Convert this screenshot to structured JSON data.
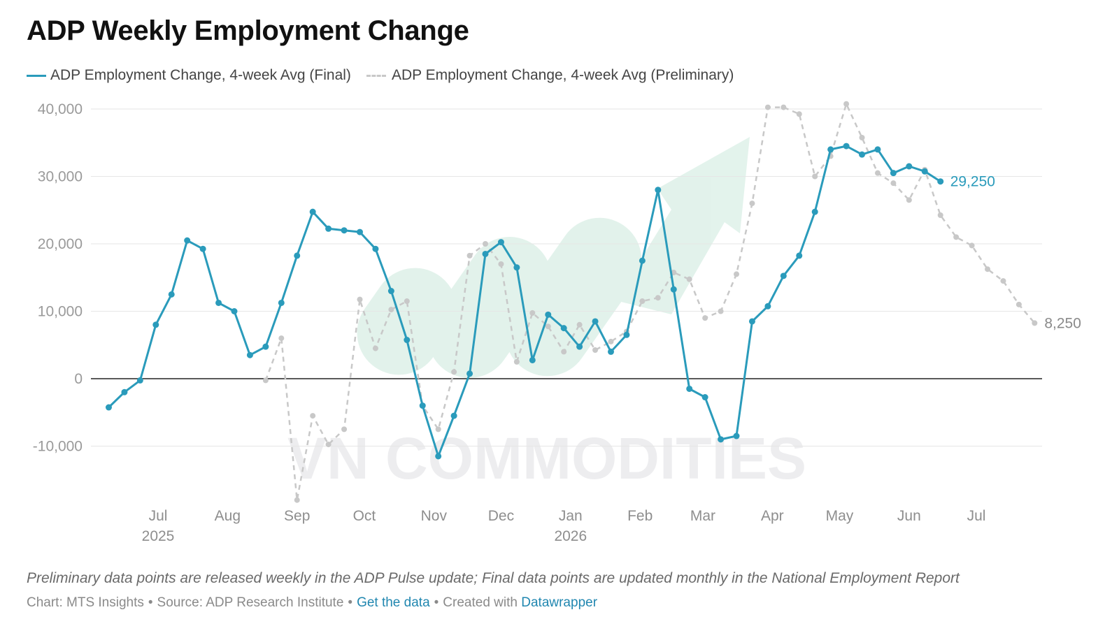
{
  "title": "ADP Weekly Employment Change",
  "legend": {
    "final_label": "ADP Employment Change, 4-week Avg (Final)",
    "preliminary_label": "ADP Employment Change, 4-week Avg (Preliminary)"
  },
  "footer": {
    "note": "Preliminary data points are released weekly in the ADP Pulse update; Final data points are updated monthly in the National Employment Report",
    "chart_by": "Chart: MTS Insights",
    "source": "Source: ADP Research Institute",
    "get_data": "Get the data",
    "created_with": "Created with",
    "datawrapper": "Datawrapper",
    "separator": "•"
  },
  "watermark": "VN COMMODITIES",
  "colors": {
    "final": "#2a9bbb",
    "preliminary": "#c8c8c8",
    "grid": "#e6e6e6",
    "zero_line": "#222222"
  },
  "chart_data": {
    "type": "line",
    "title": "ADP Weekly Employment Change",
    "ylim": [
      -20000,
      42000
    ],
    "y_ticks": [
      -10000,
      0,
      10000,
      20000,
      30000,
      40000
    ],
    "y_tick_labels": [
      "-10,000",
      "0",
      "10,000",
      "20,000",
      "30,000",
      "40,000"
    ],
    "x_ticks": [
      {
        "x": "2025-07-01",
        "label": "Jul",
        "sublabel": "2025"
      },
      {
        "x": "2025-08-01",
        "label": "Aug",
        "sublabel": ""
      },
      {
        "x": "2025-09-01",
        "label": "Sep",
        "sublabel": ""
      },
      {
        "x": "2025-10-01",
        "label": "Oct",
        "sublabel": ""
      },
      {
        "x": "2025-11-01",
        "label": "Nov",
        "sublabel": ""
      },
      {
        "x": "2025-12-01",
        "label": "Dec",
        "sublabel": ""
      },
      {
        "x": "2026-01-01",
        "label": "Jan",
        "sublabel": "2026"
      },
      {
        "x": "2026-02-01",
        "label": "Feb",
        "sublabel": ""
      },
      {
        "x": "2026-03-01",
        "label": "Mar",
        "sublabel": ""
      },
      {
        "x": "2026-04-01",
        "label": "Apr",
        "sublabel": ""
      },
      {
        "x": "2026-05-01",
        "label": "May",
        "sublabel": ""
      },
      {
        "x": "2026-06-01",
        "label": "Jun",
        "sublabel": ""
      },
      {
        "x": "2026-07-01",
        "label": "Jul",
        "sublabel": ""
      }
    ],
    "series": [
      {
        "name": "ADP Employment Change, 4-week Avg (Final)",
        "style": "solid",
        "end_label": "29,250",
        "points": [
          {
            "x": "2025-06-09",
            "y": -4250
          },
          {
            "x": "2025-06-16",
            "y": -2000
          },
          {
            "x": "2025-06-23",
            "y": -250
          },
          {
            "x": "2025-06-30",
            "y": 8000
          },
          {
            "x": "2025-07-07",
            "y": 12500
          },
          {
            "x": "2025-07-14",
            "y": 20500
          },
          {
            "x": "2025-07-21",
            "y": 19250
          },
          {
            "x": "2025-07-28",
            "y": 11250
          },
          {
            "x": "2025-08-04",
            "y": 10000
          },
          {
            "x": "2025-08-11",
            "y": 3500
          },
          {
            "x": "2025-08-18",
            "y": 4750
          },
          {
            "x": "2025-08-25",
            "y": 11250
          },
          {
            "x": "2025-09-01",
            "y": 18250
          },
          {
            "x": "2025-09-08",
            "y": 24750
          },
          {
            "x": "2025-09-15",
            "y": 22250
          },
          {
            "x": "2025-09-22",
            "y": 22000
          },
          {
            "x": "2025-09-29",
            "y": 21750
          },
          {
            "x": "2025-10-06",
            "y": 19250
          },
          {
            "x": "2025-10-13",
            "y": 13000
          },
          {
            "x": "2025-10-20",
            "y": 5750
          },
          {
            "x": "2025-10-27",
            "y": -4000
          },
          {
            "x": "2025-11-03",
            "y": -11500
          },
          {
            "x": "2025-11-10",
            "y": -5500
          },
          {
            "x": "2025-11-17",
            "y": 750
          },
          {
            "x": "2025-11-24",
            "y": 18500
          },
          {
            "x": "2025-12-01",
            "y": 20250
          },
          {
            "x": "2025-12-08",
            "y": 16500
          },
          {
            "x": "2025-12-15",
            "y": 2750
          },
          {
            "x": "2025-12-22",
            "y": 9500
          },
          {
            "x": "2025-12-29",
            "y": 7500
          },
          {
            "x": "2026-01-05",
            "y": 4750
          },
          {
            "x": "2026-01-12",
            "y": 8500
          },
          {
            "x": "2026-01-19",
            "y": 4000
          },
          {
            "x": "2026-01-26",
            "y": 6500
          },
          {
            "x": "2026-02-02",
            "y": 17500
          },
          {
            "x": "2026-02-09",
            "y": 28000
          },
          {
            "x": "2026-02-16",
            "y": 13250
          },
          {
            "x": "2026-02-23",
            "y": -1500
          },
          {
            "x": "2026-03-02",
            "y": -2750
          },
          {
            "x": "2026-03-09",
            "y": -9000
          },
          {
            "x": "2026-03-16",
            "y": -8500
          },
          {
            "x": "2026-03-23",
            "y": 8500
          },
          {
            "x": "2026-03-30",
            "y": 10750
          },
          {
            "x": "2026-04-06",
            "y": 15250
          },
          {
            "x": "2026-04-13",
            "y": 18250
          },
          {
            "x": "2026-04-20",
            "y": 24750
          },
          {
            "x": "2026-04-27",
            "y": 34000
          },
          {
            "x": "2026-05-04",
            "y": 34500
          },
          {
            "x": "2026-05-11",
            "y": 33250
          },
          {
            "x": "2026-05-18",
            "y": 34000
          },
          {
            "x": "2026-05-25",
            "y": 30500
          },
          {
            "x": "2026-06-01",
            "y": 31500
          },
          {
            "x": "2026-06-08",
            "y": 30750
          },
          {
            "x": "2026-06-15",
            "y": 29250
          }
        ]
      },
      {
        "name": "ADP Employment Change, 4-week Avg (Preliminary)",
        "style": "dashed",
        "end_label": "8,250",
        "points": [
          {
            "x": "2025-08-18",
            "y": -250
          },
          {
            "x": "2025-08-25",
            "y": 6000
          },
          {
            "x": "2025-09-01",
            "y": -18000
          },
          {
            "x": "2025-09-08",
            "y": -5500
          },
          {
            "x": "2025-09-15",
            "y": -9750
          },
          {
            "x": "2025-09-22",
            "y": -7500
          },
          {
            "x": "2025-09-29",
            "y": 11750
          },
          {
            "x": "2025-10-06",
            "y": 4500
          },
          {
            "x": "2025-10-13",
            "y": 10250
          },
          {
            "x": "2025-10-20",
            "y": 11500
          },
          {
            "x": "2025-10-27",
            "y": -4000
          },
          {
            "x": "2025-11-03",
            "y": -7500
          },
          {
            "x": "2025-11-10",
            "y": 1000
          },
          {
            "x": "2025-11-17",
            "y": 18250
          },
          {
            "x": "2025-11-24",
            "y": 20000
          },
          {
            "x": "2025-12-01",
            "y": 17000
          },
          {
            "x": "2025-12-08",
            "y": 2500
          },
          {
            "x": "2025-12-15",
            "y": 9750
          },
          {
            "x": "2025-12-22",
            "y": 7750
          },
          {
            "x": "2025-12-29",
            "y": 4000
          },
          {
            "x": "2026-01-05",
            "y": 8000
          },
          {
            "x": "2026-01-12",
            "y": 4250
          },
          {
            "x": "2026-01-19",
            "y": 5500
          },
          {
            "x": "2026-01-26",
            "y": 7000
          },
          {
            "x": "2026-02-02",
            "y": 11500
          },
          {
            "x": "2026-02-09",
            "y": 12000
          },
          {
            "x": "2026-02-16",
            "y": 15750
          },
          {
            "x": "2026-02-23",
            "y": 14750
          },
          {
            "x": "2026-03-02",
            "y": 9000
          },
          {
            "x": "2026-03-09",
            "y": 10000
          },
          {
            "x": "2026-03-16",
            "y": 15500
          },
          {
            "x": "2026-03-23",
            "y": 26000
          },
          {
            "x": "2026-03-30",
            "y": 40250
          },
          {
            "x": "2026-04-06",
            "y": 40250
          },
          {
            "x": "2026-04-13",
            "y": 39250
          },
          {
            "x": "2026-04-20",
            "y": 30000
          },
          {
            "x": "2026-04-27",
            "y": 33000
          },
          {
            "x": "2026-05-04",
            "y": 40750
          },
          {
            "x": "2026-05-11",
            "y": 35750
          },
          {
            "x": "2026-05-18",
            "y": 30500
          },
          {
            "x": "2026-05-25",
            "y": 29000
          },
          {
            "x": "2026-06-01",
            "y": 26500
          },
          {
            "x": "2026-06-08",
            "y": 31000
          },
          {
            "x": "2026-06-15",
            "y": 24250
          },
          {
            "x": "2026-06-22",
            "y": 21000
          },
          {
            "x": "2026-06-29",
            "y": 19750
          },
          {
            "x": "2026-07-06",
            "y": 16250
          },
          {
            "x": "2026-07-13",
            "y": 14500
          },
          {
            "x": "2026-07-20",
            "y": 11000
          },
          {
            "x": "2026-07-27",
            "y": 8250
          }
        ]
      }
    ]
  }
}
